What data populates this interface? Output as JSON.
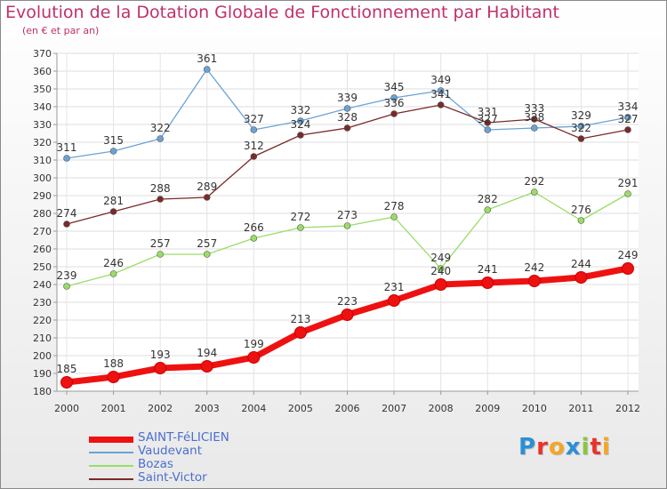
{
  "title": "Evolution de la Dotation Globale de Fonctionnement par Habitant",
  "subtitle": "(en € et par an)",
  "chart_data": {
    "type": "line",
    "title": "Evolution de la Dotation Globale de Fonctionnement par Habitant",
    "subtitle": "(en € et par an)",
    "x": [
      2000,
      2001,
      2002,
      2003,
      2004,
      2005,
      2006,
      2007,
      2008,
      2009,
      2010,
      2011,
      2012
    ],
    "ylim": [
      180,
      370
    ],
    "yticks": [
      180,
      190,
      200,
      210,
      220,
      230,
      240,
      250,
      260,
      270,
      280,
      290,
      300,
      310,
      320,
      330,
      340,
      350,
      360,
      370
    ],
    "grid": true,
    "legend_position": "bottom-left",
    "series": [
      {
        "name": "SAINT-FéLICIEN",
        "color": "#ee1111",
        "values": [
          185,
          188,
          193,
          194,
          199,
          213,
          223,
          231,
          240,
          241,
          242,
          244,
          249
        ]
      },
      {
        "name": "Vaudevant",
        "color": "#6aa3d4",
        "values": [
          311,
          315,
          322,
          361,
          327,
          332,
          339,
          345,
          349,
          327,
          328,
          329,
          334
        ]
      },
      {
        "name": "Bozas",
        "color": "#99dd66",
        "values": [
          239,
          246,
          257,
          257,
          266,
          272,
          273,
          278,
          249,
          282,
          292,
          276,
          291
        ]
      },
      {
        "name": "Saint-Victor",
        "color": "#7a2a2a",
        "values": [
          274,
          281,
          288,
          289,
          312,
          324,
          328,
          336,
          341,
          331,
          333,
          322,
          327
        ]
      }
    ]
  },
  "logo": {
    "text": "Proxiti",
    "colors": [
      "#2b8fd6",
      "#e8322e",
      "#f5a623",
      "#2b8fd6",
      "#8cc63f",
      "#e8322e",
      "#f5a623"
    ]
  }
}
